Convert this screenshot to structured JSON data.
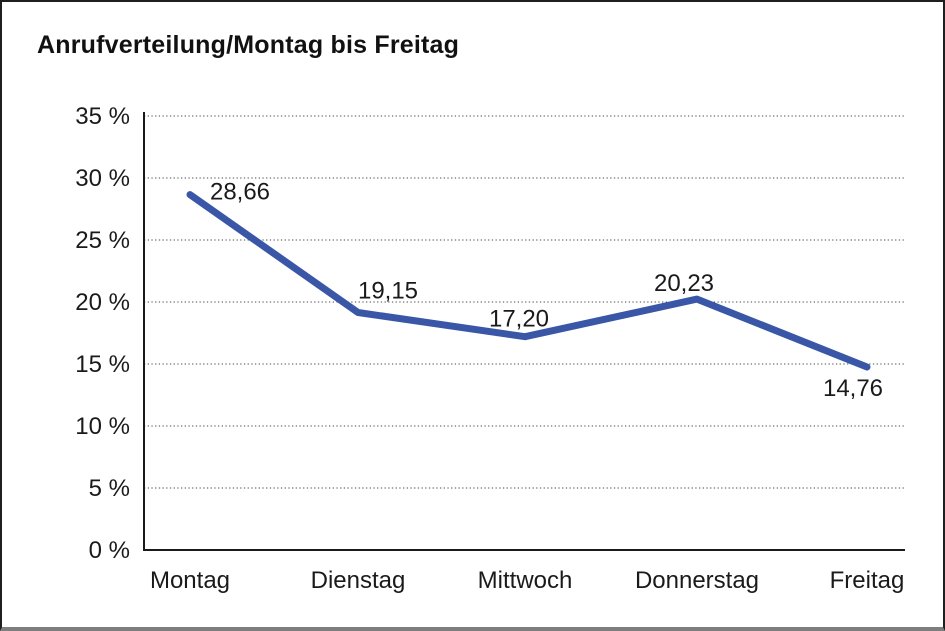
{
  "chart_data": {
    "type": "line",
    "title": "Anrufverteilung/Montag bis Freitag",
    "categories": [
      "Montag",
      "Dienstag",
      "Mittwoch",
      "Donnerstag",
      "Freitag"
    ],
    "series": [
      {
        "name": "Anrufverteilung",
        "values": [
          28.66,
          19.15,
          17.2,
          20.23,
          14.76
        ]
      }
    ],
    "data_labels": [
      "28,66",
      "19,15",
      "17,20",
      "20,23",
      "14,76"
    ],
    "y_ticks": [
      {
        "value": 0,
        "label": "0 %"
      },
      {
        "value": 5,
        "label": "5 %"
      },
      {
        "value": 10,
        "label": "10 %"
      },
      {
        "value": 15,
        "label": "15 %"
      },
      {
        "value": 20,
        "label": "20 %"
      },
      {
        "value": 25,
        "label": "25 %"
      },
      {
        "value": 30,
        "label": "30 %"
      },
      {
        "value": 35,
        "label": "35 %"
      }
    ],
    "xlabel": "",
    "ylabel": "",
    "ylim": [
      0,
      35
    ],
    "y_tick_step": 5,
    "grid": "horizontal-dotted",
    "legend": "none",
    "colors": {
      "line": "#3a57a7",
      "grid": "#4a4a4a",
      "axis": "#1a1a1a",
      "text": "#1a1a1a",
      "background": "#ffffff",
      "frame_border": "#1f1f1f",
      "frame_bottom_border": "#7e7e7e"
    }
  }
}
